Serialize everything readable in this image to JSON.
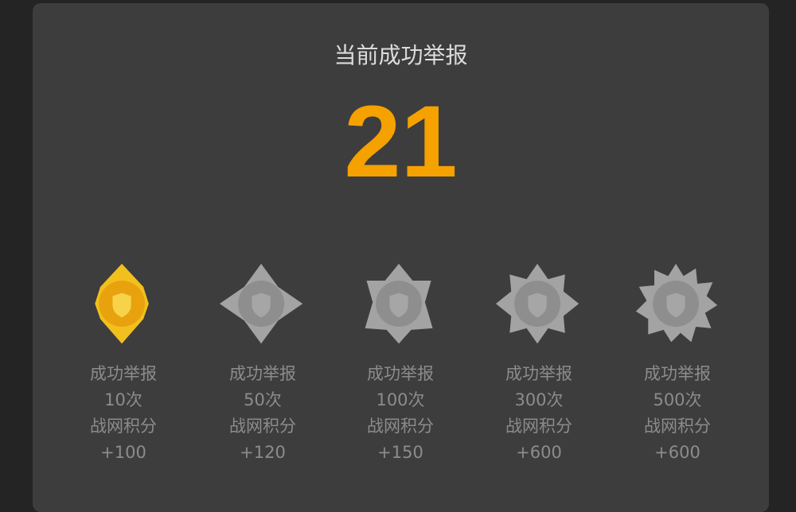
{
  "title": "当前成功举报",
  "count": "21",
  "accent_color": "#f5a100",
  "medals": [
    {
      "label": "成功举报",
      "times": "10次",
      "reward_label": "战网积分",
      "reward": "+100",
      "achieved": true
    },
    {
      "label": "成功举报",
      "times": "50次",
      "reward_label": "战网积分",
      "reward": "+120",
      "achieved": false
    },
    {
      "label": "成功举报",
      "times": "100次",
      "reward_label": "战网积分",
      "reward": "+150",
      "achieved": false
    },
    {
      "label": "成功举报",
      "times": "300次",
      "reward_label": "战网积分",
      "reward": "+600",
      "achieved": false
    },
    {
      "label": "成功举报",
      "times": "500次",
      "reward_label": "战网积分",
      "reward": "+600",
      "achieved": false
    }
  ]
}
